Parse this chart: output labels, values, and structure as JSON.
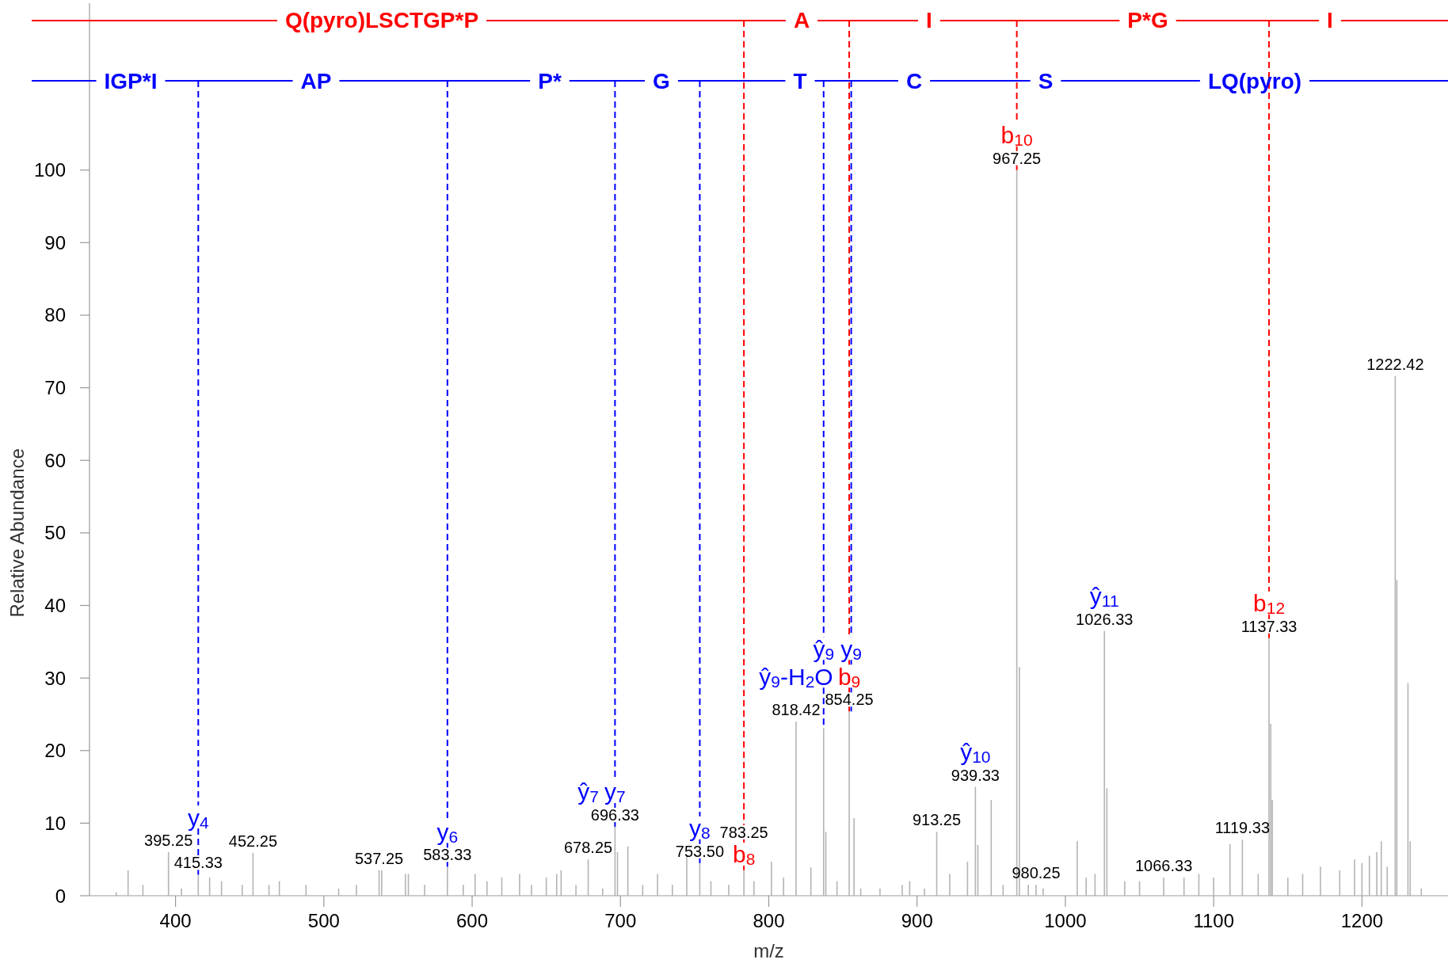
{
  "chart_data": {
    "type": "bar",
    "xlabel": "m/z",
    "ylabel": "Relative Abundance",
    "xlim": [
      342,
      1258
    ],
    "ylim": [
      0,
      123
    ],
    "xticks": [
      400,
      500,
      600,
      700,
      800,
      900,
      1000,
      1100,
      1200
    ],
    "yticks": [
      0,
      10,
      20,
      30,
      40,
      50,
      60,
      70,
      80,
      90,
      100
    ],
    "series": [
      {
        "color": "#b4b4b4",
        "x": [
          360,
          368,
          378,
          395.25,
          404,
          415.33,
          423,
          431,
          445,
          452.25,
          463,
          470,
          488,
          510,
          522,
          537.25,
          539,
          555,
          557,
          568,
          583.33,
          594,
          602,
          610,
          620,
          632,
          640,
          650,
          657,
          660,
          670,
          678.25,
          688,
          696.33,
          698,
          705,
          715,
          725,
          735,
          744.7,
          753.5,
          761,
          773,
          783.25,
          790,
          801.8,
          810,
          818.42,
          828.4,
          837,
          838.5,
          846,
          854.25,
          857.5,
          862,
          875,
          890,
          895,
          905,
          913.25,
          922,
          934,
          939.33,
          941,
          950,
          958,
          967.25,
          969,
          975,
          980.25,
          985,
          1008,
          1014,
          1020,
          1026.33,
          1028,
          1040,
          1050,
          1066.33,
          1080,
          1090,
          1100,
          1111,
          1119.33,
          1130,
          1137.33,
          1138.5,
          1139.5,
          1150,
          1160,
          1172,
          1185,
          1195,
          1200,
          1205,
          1210,
          1213,
          1217,
          1222.42,
          1223.5,
          1231,
          1232.5,
          1240
        ],
        "values": [
          0.5,
          3.5,
          1.5,
          6,
          1,
          2.9,
          2.5,
          2,
          1.5,
          5.9,
          1.5,
          2,
          1.5,
          1,
          1.5,
          3.5,
          3.5,
          3,
          3,
          1.5,
          4,
          1.5,
          3,
          2,
          2.5,
          3,
          1.5,
          2.5,
          3,
          3.5,
          1.5,
          5,
          1,
          9.5,
          6,
          6.8,
          1.5,
          3,
          1.5,
          5.6,
          4.5,
          2,
          1.5,
          3.5,
          2,
          4.7,
          2.5,
          24,
          3.9,
          23.1,
          8.8,
          2,
          25.4,
          10.7,
          1,
          1,
          1.5,
          2,
          1,
          8.8,
          3,
          4.7,
          15,
          7,
          13.2,
          1.5,
          100,
          31.5,
          1.5,
          1.5,
          1,
          7.5,
          2.5,
          3,
          36.5,
          14.8,
          2,
          2,
          2.5,
          2.5,
          3,
          2.5,
          7.1,
          7.7,
          3,
          35.5,
          23.7,
          13.2,
          2.5,
          3,
          4,
          3.5,
          5,
          4.5,
          5.5,
          6,
          7.5,
          4,
          71.6,
          43.5,
          29.3,
          7.5,
          1
        ]
      }
    ],
    "ref_lines": [
      {
        "axis": "y",
        "value": 120.6,
        "color": "#ff0000",
        "line_style": "solid"
      },
      {
        "axis": "y",
        "value": 112.3,
        "color": "#0000ff",
        "line_style": "solid"
      },
      {
        "axis": "x",
        "value": 967.25,
        "color": "#ff0000",
        "line_style": "dashed",
        "label": "b$_{10}$"
      },
      {
        "axis": "x",
        "value": 1137.33,
        "color": "#ff0000",
        "line_style": "dashed",
        "label": "b$_{12}$"
      },
      {
        "axis": "x",
        "value": 783.25,
        "color": "#ff0000",
        "line_style": "dashed",
        "label": "b$_{8}$"
      },
      {
        "axis": "x",
        "value": 854.25,
        "color": "#ff0000",
        "line_style": "dashed",
        "label": "b$_{9}$"
      },
      {
        "axis": "x",
        "value": 415.33,
        "color": "#0000ff",
        "line_style": "dashed",
        "label": "y$_{4}$"
      },
      {
        "axis": "x",
        "value": 583.33,
        "color": "#0000ff",
        "line_style": "dashed",
        "label": "y$_{6}$"
      },
      {
        "axis": "x",
        "value": 696.33,
        "color": "#0000ff",
        "line_style": "dashed",
        "label": "y$_{7}$"
      },
      {
        "axis": "x",
        "value": 753.5,
        "color": "#0000ff",
        "line_style": "dashed",
        "label": "y$_{8}$"
      },
      {
        "axis": "x",
        "value": 837,
        "color": "#0000ff",
        "line_style": "dashed",
        "label": "ŷ$_{9}$"
      },
      {
        "axis": "x",
        "value": 855.6,
        "color": "#0000ff",
        "line_style": "dashed",
        "label": "y$_{9}$"
      }
    ],
    "annotations": [
      "Q(pyro)LSCTGP*P",
      "A",
      "I",
      "P*G",
      "I",
      "IGP*I",
      "AP",
      "P*",
      "G",
      "T",
      "C",
      "S",
      "LQ(pyro)",
      {
        "text": "967.25",
        "x": 967.25,
        "y": 100
      },
      {
        "text": "1222.42",
        "x": 1222.42,
        "y": 71.6
      },
      {
        "text": "1026.33",
        "x": 1026.33,
        "y": 36.5
      },
      {
        "text": "1137.33",
        "x": 1137.33,
        "y": 35.5
      },
      {
        "text": "854.25",
        "x": 854.25,
        "y": 25.4
      },
      {
        "text": "818.42",
        "x": 818.42,
        "y": 24
      },
      {
        "text": "939.33",
        "x": 939.33,
        "y": 15
      },
      {
        "text": "696.33",
        "x": 696.33,
        "y": 9.5
      },
      {
        "text": "913.25",
        "x": 913.25,
        "y": 8.8
      },
      {
        "text": "1119.33",
        "x": 1119.33,
        "y": 7.7
      },
      {
        "text": "395.25",
        "x": 395.25,
        "y": 6
      },
      {
        "text": "452.25",
        "x": 452.25,
        "y": 5.9
      },
      {
        "text": "678.25",
        "x": 678.25,
        "y": 5
      },
      {
        "text": "753.50",
        "x": 753.5,
        "y": 4.5
      },
      {
        "text": "583.33",
        "x": 583.33,
        "y": 4
      },
      {
        "text": "537.25",
        "x": 537.25,
        "y": 3.5
      },
      {
        "text": "783.25",
        "x": 783.25,
        "y": 3.5
      },
      {
        "text": "415.33",
        "x": 415.33,
        "y": 2.9
      },
      {
        "text": "1066.33",
        "x": 1066.33,
        "y": 2.5
      },
      {
        "text": "980.25",
        "x": 980.25,
        "y": 1.5
      },
      {
        "text": "ŷ$_{7}$",
        "x": 678.25,
        "y": 5
      },
      {
        "text": "ŷ$_{9}$-H$_{2}$O",
        "x": 818.42,
        "y": 24
      },
      {
        "text": "ŷ$_{10}$",
        "x": 939.33,
        "y": 15
      },
      {
        "text": "ŷ$_{11}$",
        "x": 1026.33,
        "y": 36.5
      }
    ]
  }
}
